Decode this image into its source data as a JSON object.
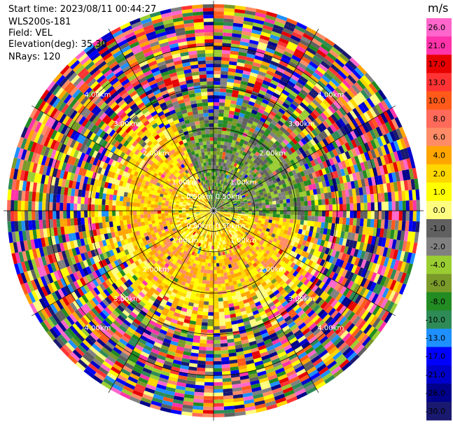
{
  "info": {
    "start_time": "Start time: 2023/08/11 00:44:27",
    "station": "WLS200s-181",
    "field": "Field: VEL",
    "elevation": "Elevation(deg): 35.30",
    "nrays": "NRays: 120"
  },
  "chart_data": {
    "type": "heatmap",
    "projection": "polar-ppi",
    "rays": 120,
    "range_rings_labels": [
      "0.50km",
      "1.00km",
      "2.00km",
      "3.00km",
      "4.00km"
    ],
    "range_rings_km": [
      0.5,
      1.0,
      2.0,
      3.0,
      4.0
    ],
    "spoke_angles_deg": [
      0,
      30,
      60,
      90,
      120,
      150,
      180,
      210,
      240,
      270,
      300,
      330
    ],
    "colorbar": {
      "title": "m/s",
      "ticks": [
        "26.0",
        "21.0",
        "17.0",
        "13.0",
        "10.0",
        "8.0",
        "6.0",
        "4.0",
        "2.0",
        "1.0",
        "0.0",
        "-1.0",
        "-2.0",
        "-4.0",
        "-6.0",
        "-8.0",
        "-10.0",
        "-13.0",
        "-17.0",
        "-21.0",
        "-26.0",
        "-30.0"
      ],
      "colors": [
        "#ff66cc",
        "#ff33aa",
        "#e60000",
        "#ff3333",
        "#ff5a1a",
        "#ff6a5a",
        "#ff8c66",
        "#ffa500",
        "#ffd700",
        "#ffff00",
        "#fffd80",
        "#606060",
        "#808080",
        "#9acd32",
        "#7a9a2a",
        "#228b22",
        "#2e8b57",
        "#1e90ff",
        "#0000ff",
        "#0000cd",
        "#00008b",
        "#191970"
      ]
    },
    "pattern": {
      "inner_positive_sector_deg": [
        95,
        335
      ],
      "inner_negative_sector_deg": [
        335,
        95
      ],
      "clean_radius_km": 2.0
    }
  }
}
